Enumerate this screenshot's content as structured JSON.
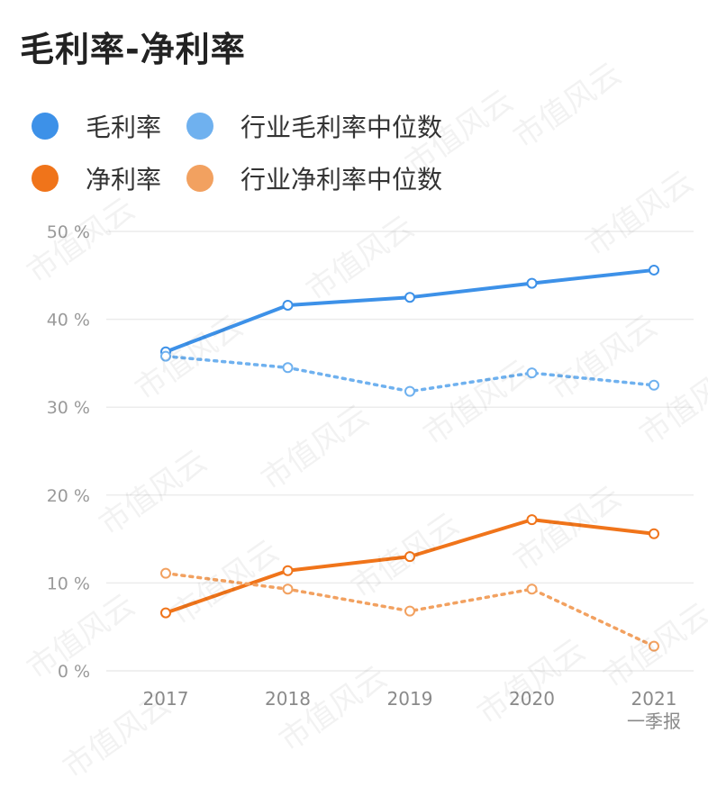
{
  "title": "毛利率-净利率",
  "watermark": "市值风云",
  "chart_data": {
    "type": "line",
    "title": "毛利率-净利率",
    "categories": [
      "2017",
      "2018",
      "2019",
      "2020",
      "2021"
    ],
    "category_sublabels": [
      "",
      "",
      "",
      "",
      "一季报"
    ],
    "ylim": [
      0,
      50
    ],
    "yticks": [
      0,
      10,
      20,
      30,
      40,
      50
    ],
    "ytick_labels": [
      "0 %",
      "10 %",
      "20 %",
      "30 %",
      "40 %",
      "50 %"
    ],
    "grid": true,
    "legend_position": "top-left",
    "series": [
      {
        "name": "毛利率",
        "color": "#3d91e8",
        "style": "solid",
        "values": [
          36.3,
          41.6,
          42.5,
          44.1,
          45.6
        ]
      },
      {
        "name": "行业毛利率中位数",
        "color": "#6fb1ef",
        "style": "dotted",
        "values": [
          35.8,
          34.5,
          31.8,
          33.9,
          32.5
        ]
      },
      {
        "name": "净利率",
        "color": "#f0741a",
        "style": "solid",
        "values": [
          6.6,
          11.4,
          13.0,
          17.2,
          15.6
        ]
      },
      {
        "name": "行业净利率中位数",
        "color": "#f2a160",
        "style": "dotted",
        "values": [
          11.1,
          9.3,
          6.8,
          9.3,
          2.8
        ]
      }
    ]
  }
}
